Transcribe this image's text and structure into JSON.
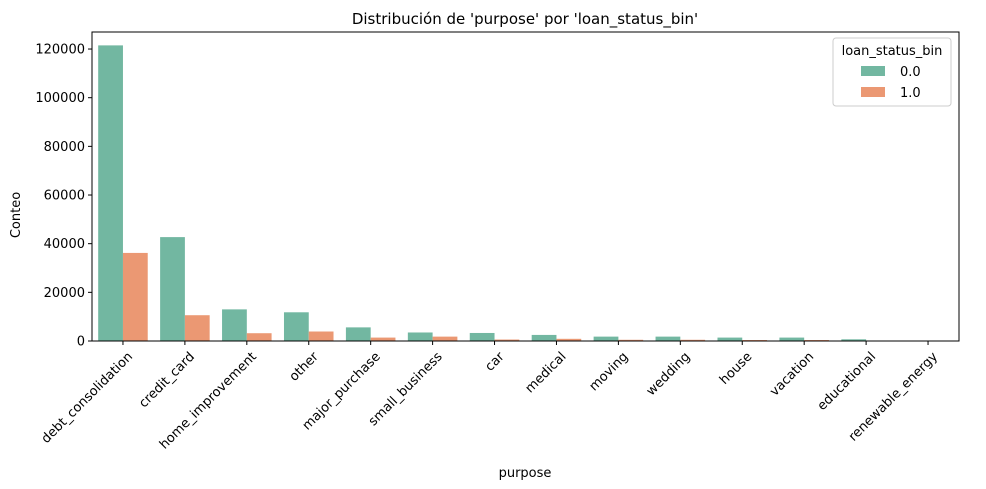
{
  "chart_data": {
    "type": "bar",
    "title": "Distribución de 'purpose' por 'loan_status_bin'",
    "xlabel": "purpose",
    "ylabel": "Conteo",
    "ylim": [
      0,
      127000
    ],
    "yticks": [
      0,
      20000,
      40000,
      60000,
      80000,
      100000,
      120000
    ],
    "grid": false,
    "legend_position": "top-right",
    "legend_title": "loan_status_bin",
    "categories": [
      "debt_consolidation",
      "credit_card",
      "home_improvement",
      "other",
      "major_purchase",
      "small_business",
      "car",
      "medical",
      "moving",
      "wedding",
      "house",
      "vacation",
      "educational",
      "renewable_energy"
    ],
    "series": [
      {
        "name": "0.0",
        "color": "#72b7a1",
        "values": [
          121500,
          42700,
          13000,
          11800,
          5600,
          3500,
          3300,
          2500,
          1800,
          1800,
          1400,
          1400,
          700,
          150
        ]
      },
      {
        "name": "1.0",
        "color": "#eb9873",
        "values": [
          36200,
          10600,
          3200,
          3900,
          1400,
          1800,
          600,
          900,
          500,
          500,
          400,
          400,
          200,
          50
        ]
      }
    ]
  }
}
